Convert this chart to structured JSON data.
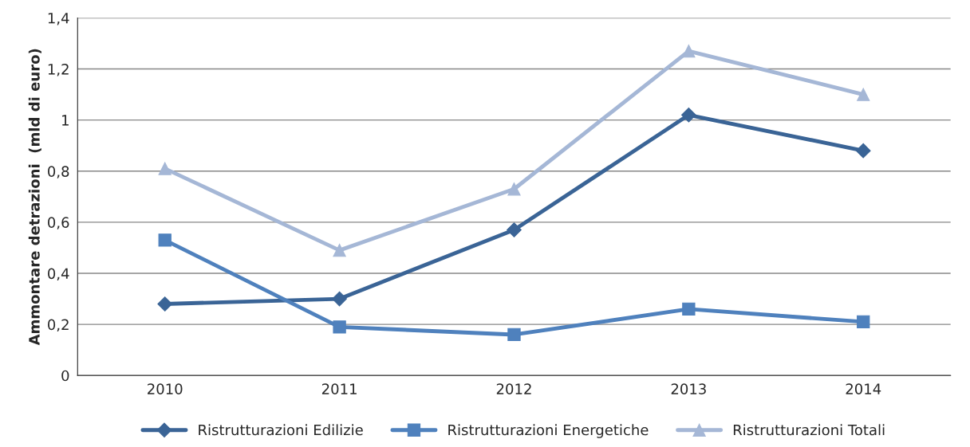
{
  "chart_data": {
    "type": "line",
    "ylabel": "Ammontare detrazioni  (mld di euro)",
    "categories": [
      "2010",
      "2011",
      "2012",
      "2013",
      "2014"
    ],
    "series": [
      {
        "name": "Ristrutturazioni Edilizie",
        "color": "#3a6496",
        "marker": "diamond",
        "values": [
          0.28,
          0.3,
          0.57,
          1.02,
          0.88
        ]
      },
      {
        "name": "Ristrutturazioni Energetiche",
        "color": "#4f81bd",
        "marker": "square",
        "values": [
          0.53,
          0.19,
          0.16,
          0.26,
          0.21
        ]
      },
      {
        "name": "Ristrutturazioni Totali",
        "color": "#a5b7d6",
        "marker": "triangle",
        "values": [
          0.81,
          0.49,
          0.73,
          1.27,
          1.1
        ]
      }
    ],
    "ylim": [
      0,
      1.4
    ],
    "yticks": [
      0,
      {
        "value": 0.2,
        "label": "0,2"
      },
      {
        "value": 0.4,
        "label": "0,4"
      },
      {
        "value": 0.6,
        "label": "0,6"
      },
      {
        "value": 0.8,
        "label": "0,8"
      },
      1,
      {
        "value": 1.2,
        "label": "1,2"
      },
      {
        "value": 1.4,
        "label": "1,4"
      }
    ],
    "grid": "y",
    "legend": "bottom",
    "line_style": "solid"
  }
}
